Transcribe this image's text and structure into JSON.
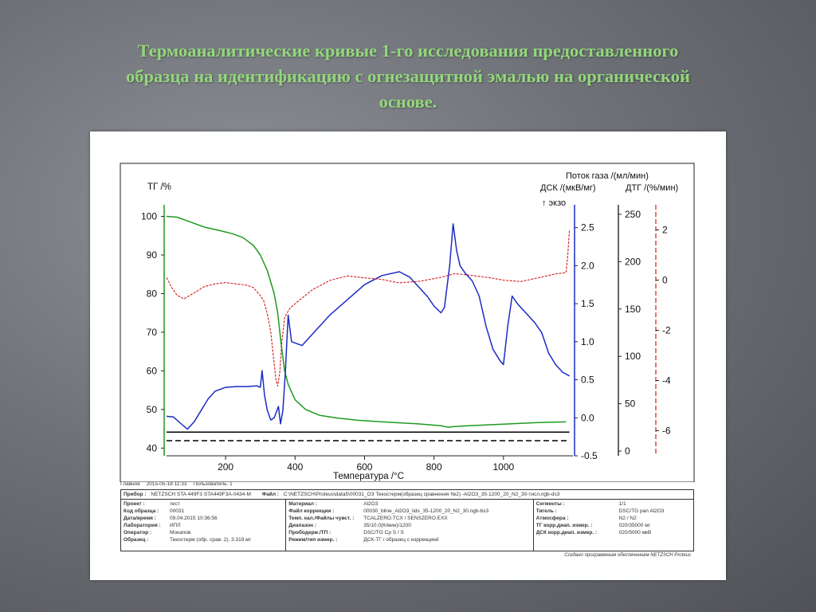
{
  "slide": {
    "title_lines": [
      "Термоаналитические кривые 1-го исследования предоставленного",
      "образца на идентификацию с огнезащитной эмалью на органической",
      "основе."
    ],
    "title_color": "#93d77b"
  },
  "chart_data": {
    "type": "line",
    "xlabel": "Температура /°C",
    "x_ticks": [
      "200",
      "400",
      "600",
      "800",
      "1000"
    ],
    "xlim": [
      30,
      1200
    ],
    "axes": {
      "tg": {
        "label": "ТГ /%",
        "ylim": [
          38,
          103
        ],
        "ticks": [
          "100",
          "90",
          "80",
          "70",
          "60",
          "50",
          "40"
        ],
        "color": "#1f9a1f"
      },
      "dsc": {
        "label": "ДСК /(мкВ/мг)",
        "ylim": [
          -0.5,
          2.8
        ],
        "ticks": [
          "2.5",
          "2.0",
          "1.5",
          "1.0",
          "0.5",
          "0.0",
          "-0.5"
        ],
        "color": "#1a2bc4"
      },
      "gas": {
        "label": "Поток газа /(мл/мин)",
        "ylim": [
          -5,
          260
        ],
        "ticks": [
          "250",
          "200",
          "150",
          "100",
          "50",
          "0"
        ],
        "color": "#000000"
      },
      "dtg": {
        "label": "ДТГ /(%/мин)",
        "ylim": [
          -7,
          3
        ],
        "ticks": [
          "2",
          "0",
          "-2",
          "-4",
          "-6"
        ],
        "color": "#d21a1a"
      }
    },
    "exo_label": "↑ экзо",
    "series": [
      {
        "axis": "tg",
        "color": "#1f9a1f",
        "x": [
          30,
          60,
          100,
          140,
          180,
          220,
          250,
          280,
          300,
          320,
          340,
          350,
          360,
          370,
          380,
          400,
          430,
          470,
          520,
          580,
          650,
          750,
          820,
          840,
          860,
          900,
          1000,
          1100,
          1180
        ],
        "y": [
          100,
          99.8,
          98.5,
          97.2,
          96.4,
          95.5,
          94.5,
          92.5,
          90.0,
          86.0,
          80.0,
          75.0,
          67.0,
          60.0,
          56.5,
          52.5,
          50.0,
          48.5,
          47.8,
          47.2,
          46.8,
          46.3,
          45.8,
          45.4,
          45.6,
          45.8,
          46.2,
          46.6,
          46.8
        ]
      },
      {
        "axis": "dsc",
        "color": "#1a2bc4",
        "x": [
          30,
          50,
          70,
          90,
          110,
          130,
          150,
          170,
          200,
          230,
          260,
          290,
          300,
          305,
          312,
          320,
          330,
          340,
          352,
          358,
          365,
          372,
          380,
          390,
          420,
          460,
          500,
          550,
          600,
          650,
          700,
          730,
          760,
          780,
          800,
          820,
          830,
          845,
          855,
          865,
          875,
          890,
          910,
          930,
          950,
          970,
          990,
          1000,
          1012,
          1025,
          1040,
          1060,
          1090,
          1110,
          1130,
          1150,
          1170,
          1190
        ],
        "y": [
          0.02,
          0.01,
          -0.07,
          -0.15,
          -0.05,
          0.1,
          0.25,
          0.35,
          0.4,
          0.41,
          0.41,
          0.42,
          0.4,
          0.62,
          0.3,
          0.1,
          -0.03,
          0.0,
          0.15,
          -0.08,
          0.1,
          0.6,
          1.35,
          1.0,
          0.95,
          1.15,
          1.35,
          1.55,
          1.75,
          1.87,
          1.92,
          1.85,
          1.7,
          1.6,
          1.47,
          1.38,
          1.45,
          2.0,
          2.55,
          2.2,
          2.0,
          1.9,
          1.8,
          1.6,
          1.2,
          0.9,
          0.75,
          0.7,
          1.2,
          1.6,
          1.5,
          1.4,
          1.25,
          1.12,
          0.85,
          0.7,
          0.6,
          0.55
        ]
      },
      {
        "axis": "gas",
        "color": "#000000",
        "x": [
          30,
          1190
        ],
        "y": [
          20,
          20
        ]
      },
      {
        "axis": "gas",
        "color": "#000000",
        "dashed": true,
        "x": [
          30,
          1190
        ],
        "y": [
          11,
          11
        ]
      },
      {
        "axis": "dtg",
        "color": "#d21a1a",
        "x": [
          30,
          45,
          60,
          80,
          110,
          140,
          170,
          200,
          230,
          260,
          280,
          300,
          310,
          320,
          330,
          340,
          345,
          350,
          356,
          362,
          370,
          385,
          400,
          420,
          450,
          500,
          550,
          600,
          650,
          700,
          760,
          820,
          860,
          900,
          960,
          1000,
          1050,
          1100,
          1150,
          1180,
          1185,
          1190
        ],
        "y": [
          0.1,
          -0.3,
          -0.6,
          -0.75,
          -0.5,
          -0.25,
          -0.15,
          -0.1,
          -0.15,
          -0.2,
          -0.3,
          -0.5,
          -0.8,
          -1.4,
          -2.2,
          -3.4,
          -3.9,
          -4.1,
          -3.6,
          -2.5,
          -1.6,
          -1.2,
          -0.9,
          -0.6,
          -0.3,
          -0.05,
          0.05,
          0.0,
          0.05,
          0.0,
          0.05,
          0.1,
          0.15,
          0.1,
          0.1,
          0.1,
          0.05,
          0.1,
          0.15,
          0.3,
          1.0,
          2.0
        ]
      }
    ]
  },
  "metadata": {
    "header": {
      "k1": "Главное",
      "date": "2015-05-18 11:33",
      "user": "Пользователь: 1"
    },
    "device": {
      "label": "Прибор :",
      "value": "NETZSCH STA 449F3 STA449F3A-0434-M",
      "file_label": "Файл :",
      "file": "C:\\NETZSCH\\Proteus\\data5\\00031_ОЗ Текостерм(образец сравнения №2) -Al2O3_35-1200_20_N2_30-тисл.ngb-ds3"
    },
    "col1": [
      {
        "k": "Проект :",
        "v": "тест"
      },
      {
        "k": "Код образца :",
        "v": "00031"
      },
      {
        "k": "Дата/время :",
        "v": "09.04.2015 10:36:56"
      },
      {
        "k": "Лаборатория :",
        "v": "ИПЛ"
      },
      {
        "k": "Оператор :",
        "v": "Мокапов"
      },
      {
        "k": "Образец :",
        "v": "Текостерм (обр. срав. 2), 3.319 мг"
      }
    ],
    "col2": [
      {
        "k": "Материал :",
        "v": "Al2O3"
      },
      {
        "k": "Файл коррекции :",
        "v": "00030_bline_Al2O3_lids_35-1200_20_N2_30.ngb-bs3"
      },
      {
        "k": "Темп. кал./Файлы чувст. :",
        "v": "TCALZERO.TCX / SENSZERO.EXX"
      },
      {
        "k": "Диапазон :",
        "v": "35/10.0(К/мин)/1200"
      },
      {
        "k": "Прободерж./ТП :",
        "v": "DSC/TG Cp S / S"
      },
      {
        "k": "Режим/тип измер. :",
        "v": "ДСК-ТГ / образец с коррекцией"
      }
    ],
    "col3": [
      {
        "k": "Сегменты :",
        "v": "1/1"
      },
      {
        "k": "Тигель :",
        "v": "DSC/TG pan Al2O3"
      },
      {
        "k": "Атмосфера :",
        "v": "N2 / N2"
      },
      {
        "k": "ТГ корр.диап. измер. :",
        "v": "020/35000 мг"
      },
      {
        "k": "ДСК корр.диап. измер. :",
        "v": "020/5000 мкВ"
      }
    ],
    "footer": "Создано программным обеспечением NETZSCH Proteus"
  }
}
